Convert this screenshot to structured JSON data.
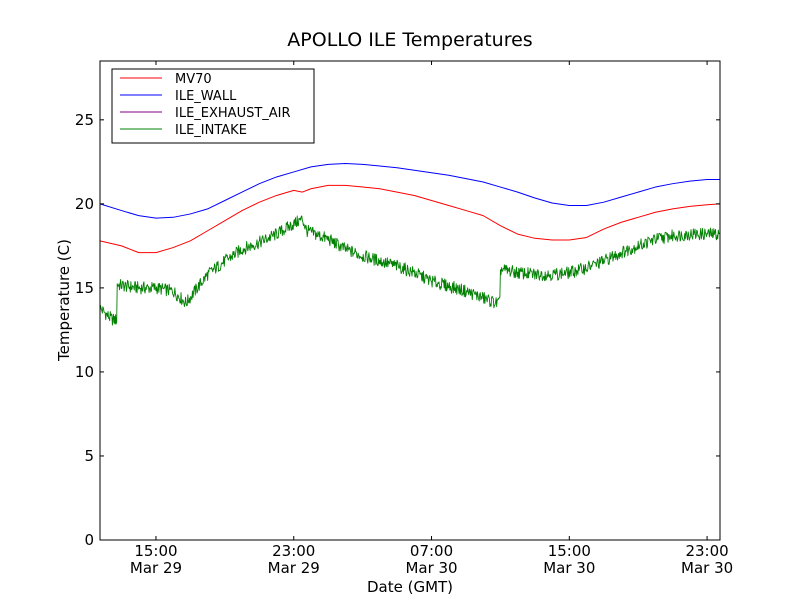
{
  "chart_data": {
    "type": "line",
    "title": "APOLLO ILE Temperatures",
    "xlabel": "Date (GMT)",
    "ylabel": "Temperature (C)",
    "xlim": [
      "2025-03-29 11:45",
      "2025-03-30 23:45"
    ],
    "ylim": [
      0,
      28.5
    ],
    "x_ticks": [
      {
        "at": "2025-03-29 15:00",
        "label_time": "15:00",
        "label_date": "Mar 29"
      },
      {
        "at": "2025-03-29 23:00",
        "label_time": "23:00",
        "label_date": "Mar 29"
      },
      {
        "at": "2025-03-30 07:00",
        "label_time": "07:00",
        "label_date": "Mar 30"
      },
      {
        "at": "2025-03-30 15:00",
        "label_time": "15:00",
        "label_date": "Mar 30"
      },
      {
        "at": "2025-03-30 23:00",
        "label_time": "23:00",
        "label_date": "Mar 30"
      }
    ],
    "y_ticks": [
      0,
      5,
      10,
      15,
      20,
      25
    ],
    "grid": false,
    "legend_position": "top-left",
    "series": [
      {
        "name": "MV70",
        "color": "#ff0000",
        "x": [
          "2025-03-29 11:45",
          "2025-03-29 13:00",
          "2025-03-29 14:00",
          "2025-03-29 15:00",
          "2025-03-29 16:00",
          "2025-03-29 17:00",
          "2025-03-29 18:00",
          "2025-03-29 19:00",
          "2025-03-29 20:00",
          "2025-03-29 21:00",
          "2025-03-29 22:00",
          "2025-03-29 23:00",
          "2025-03-29 23:30",
          "2025-03-30 00:00",
          "2025-03-30 01:00",
          "2025-03-30 02:00",
          "2025-03-30 03:00",
          "2025-03-30 04:00",
          "2025-03-30 05:00",
          "2025-03-30 06:00",
          "2025-03-30 07:00",
          "2025-03-30 08:00",
          "2025-03-30 09:00",
          "2025-03-30 10:00",
          "2025-03-30 11:00",
          "2025-03-30 12:00",
          "2025-03-30 13:00",
          "2025-03-30 14:00",
          "2025-03-30 15:00",
          "2025-03-30 16:00",
          "2025-03-30 17:00",
          "2025-03-30 18:00",
          "2025-03-30 19:00",
          "2025-03-30 20:00",
          "2025-03-30 21:00",
          "2025-03-30 22:00",
          "2025-03-30 23:00",
          "2025-03-30 23:45"
        ],
        "y": [
          17.8,
          17.5,
          17.1,
          17.1,
          17.4,
          17.8,
          18.4,
          19.0,
          19.6,
          20.1,
          20.5,
          20.8,
          20.7,
          20.9,
          21.1,
          21.1,
          21.0,
          20.9,
          20.7,
          20.5,
          20.2,
          19.9,
          19.6,
          19.3,
          18.7,
          18.2,
          17.95,
          17.85,
          17.85,
          18.0,
          18.5,
          18.9,
          19.2,
          19.5,
          19.7,
          19.85,
          19.95,
          20.0
        ]
      },
      {
        "name": "ILE_WALL",
        "color": "#0000ff",
        "x": [
          "2025-03-29 11:45",
          "2025-03-29 13:00",
          "2025-03-29 14:00",
          "2025-03-29 15:00",
          "2025-03-29 16:00",
          "2025-03-29 17:00",
          "2025-03-29 18:00",
          "2025-03-29 19:00",
          "2025-03-29 20:00",
          "2025-03-29 21:00",
          "2025-03-29 22:00",
          "2025-03-29 23:00",
          "2025-03-30 00:00",
          "2025-03-30 01:00",
          "2025-03-30 02:00",
          "2025-03-30 03:00",
          "2025-03-30 04:00",
          "2025-03-30 05:00",
          "2025-03-30 06:00",
          "2025-03-30 07:00",
          "2025-03-30 08:00",
          "2025-03-30 09:00",
          "2025-03-30 10:00",
          "2025-03-30 11:00",
          "2025-03-30 12:00",
          "2025-03-30 13:00",
          "2025-03-30 14:00",
          "2025-03-30 15:00",
          "2025-03-30 16:00",
          "2025-03-30 17:00",
          "2025-03-30 18:00",
          "2025-03-30 19:00",
          "2025-03-30 20:00",
          "2025-03-30 21:00",
          "2025-03-30 22:00",
          "2025-03-30 23:00",
          "2025-03-30 23:45"
        ],
        "y": [
          20.0,
          19.6,
          19.3,
          19.15,
          19.2,
          19.4,
          19.7,
          20.2,
          20.7,
          21.2,
          21.6,
          21.9,
          22.2,
          22.35,
          22.4,
          22.35,
          22.25,
          22.15,
          22.0,
          21.85,
          21.7,
          21.5,
          21.3,
          21.0,
          20.7,
          20.35,
          20.05,
          19.9,
          19.9,
          20.1,
          20.4,
          20.7,
          21.0,
          21.2,
          21.35,
          21.45,
          21.45
        ]
      },
      {
        "name": "ILE_EXHAUST_AIR",
        "color": "#800080",
        "x": [],
        "y": []
      },
      {
        "name": "ILE_INTAKE",
        "color": "#008000",
        "x": [
          "2025-03-29 11:45",
          "2025-03-29 12:15",
          "2025-03-29 12:30",
          "2025-03-29 12:45",
          "2025-03-29 13:15",
          "2025-03-29 14:00",
          "2025-03-29 15:00",
          "2025-03-29 16:00",
          "2025-03-29 16:45",
          "2025-03-29 17:15",
          "2025-03-29 18:00",
          "2025-03-29 19:00",
          "2025-03-29 20:00",
          "2025-03-29 21:00",
          "2025-03-29 22:00",
          "2025-03-29 23:00",
          "2025-03-29 23:30",
          "2025-03-29 23:45",
          "2025-03-30 01:00",
          "2025-03-30 02:00",
          "2025-03-30 03:00",
          "2025-03-30 04:00",
          "2025-03-30 05:00",
          "2025-03-30 06:00",
          "2025-03-30 07:00",
          "2025-03-30 08:00",
          "2025-03-30 09:00",
          "2025-03-30 10:00",
          "2025-03-30 10:45",
          "2025-03-30 11:00",
          "2025-03-30 12:00",
          "2025-03-30 13:00",
          "2025-03-30 14:00",
          "2025-03-30 15:00",
          "2025-03-30 16:00",
          "2025-03-30 17:00",
          "2025-03-30 18:00",
          "2025-03-30 19:00",
          "2025-03-30 20:00",
          "2025-03-30 21:00",
          "2025-03-30 22:00",
          "2025-03-30 23:00",
          "2025-03-30 23:45"
        ],
        "y": [
          13.8,
          13.3,
          13.1,
          15.2,
          15.1,
          15.0,
          15.0,
          14.8,
          14.1,
          14.8,
          15.8,
          16.6,
          17.3,
          17.7,
          18.2,
          18.8,
          19.1,
          18.4,
          17.9,
          17.3,
          16.9,
          16.6,
          16.3,
          15.9,
          15.4,
          15.1,
          14.8,
          14.4,
          14.1,
          16.1,
          15.9,
          15.8,
          15.8,
          15.9,
          16.2,
          16.6,
          17.1,
          17.5,
          17.9,
          18.1,
          18.2,
          18.2,
          18.2
        ]
      }
    ]
  }
}
